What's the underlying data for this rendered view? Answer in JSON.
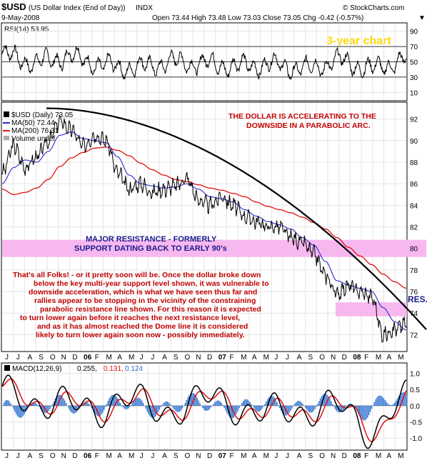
{
  "header": {
    "symbol": "$USD",
    "name": "(US Dollar Index (End of Day))",
    "exchange": "INDX",
    "date": "9-May-2008",
    "quote": "Open 73.44  High 73.48  Low 73.03  Close 73.05  Chg -0.42 (-0.57%)",
    "quote_arrow": "▼",
    "watermark": "© StockCharts.com",
    "three_year_label": "3-year chart"
  },
  "rsi": {
    "label": "RSI(14) 53.95",
    "ticks": [
      "90",
      "70",
      "50",
      "30",
      "10"
    ]
  },
  "price": {
    "legend": {
      "main": "$USD (Daily) 73.05",
      "ma50": "MA(50) 72.44",
      "ma200": "MA(200) 76.31",
      "volume": "Volume undef"
    },
    "ticks": [
      "92",
      "90",
      "88",
      "86",
      "84",
      "82",
      "80",
      "78",
      "76",
      "74",
      "72"
    ],
    "annotation_top": [
      "THE DOLLAR IS ACCELERATING TO THE",
      "DOWNSIDE IN A PARABOLIC ARC."
    ],
    "resistance_band": [
      "MAJOR RESISTANCE - FORMERLY",
      "SUPPORT DATING BACK TO EARLY 90's"
    ],
    "res_label": "RES.",
    "commentary": [
      "That's all Folks! - or it pretty soon will be. Once the dollar broke down",
      "below the key multi-year support level shown, it was vulnerable to",
      "downside acceleration, which is what we have seen thus far and",
      "rallies appear to be stopping in the vicinity of the constraining",
      "parabolic resistance line shown. For this reason it is expected",
      "to turn lower again before it reaches the next resistance level,",
      "and as it has almost reached the Dome line it is considered",
      "likely to turn lower again soon now - possibly immediately."
    ],
    "colors": {
      "band": "#f7b8f0",
      "ma50": "#2a2ad0",
      "ma200": "#e01010",
      "dome": "#000000",
      "annotation": "#c00000"
    }
  },
  "months": [
    "J",
    "J",
    "A",
    "S",
    "O",
    "N",
    "D",
    "06",
    "F",
    "M",
    "A",
    "M",
    "J",
    "J",
    "A",
    "S",
    "O",
    "N",
    "D",
    "07",
    "F",
    "M",
    "A",
    "M",
    "J",
    "J",
    "A",
    "S",
    "O",
    "N",
    "D",
    "08",
    "F",
    "M",
    "A",
    "M"
  ],
  "macd": {
    "label": "MACD(12,26,9)",
    "v1": "0.255,",
    "v2": "0.131,",
    "v3": "0.124",
    "ticks": [
      "1.0",
      "0.5",
      "0.0",
      "-0.5",
      "-1.0"
    ],
    "colors": {
      "macd": "#000000",
      "signal": "#e01010",
      "hist": "#2a6fd0"
    }
  },
  "chart_data": [
    {
      "type": "line",
      "title": "RSI(14) 53.95",
      "ylim": [
        0,
        100
      ],
      "reference_lines": [
        30,
        50,
        70
      ],
      "x": [
        "2005-06",
        "2005-09",
        "2005-12",
        "2006-03",
        "2006-06",
        "2006-09",
        "2006-12",
        "2007-03",
        "2007-06",
        "2007-09",
        "2007-12",
        "2008-03",
        "2008-05"
      ],
      "series": [
        {
          "name": "RSI(14)",
          "values": [
            60,
            48,
            58,
            45,
            42,
            50,
            48,
            44,
            47,
            40,
            52,
            40,
            54
          ]
        }
      ]
    },
    {
      "type": "line",
      "title": "$USD (Daily) 73.05",
      "ylim": [
        70.5,
        93.5
      ],
      "x": [
        "2005-06",
        "2005-07",
        "2005-08",
        "2005-09",
        "2005-10",
        "2005-11",
        "2005-12",
        "2006-01",
        "2006-02",
        "2006-03",
        "2006-04",
        "2006-05",
        "2006-06",
        "2006-07",
        "2006-08",
        "2006-09",
        "2006-10",
        "2006-11",
        "2006-12",
        "2007-01",
        "2007-02",
        "2007-03",
        "2007-04",
        "2007-05",
        "2007-06",
        "2007-07",
        "2007-08",
        "2007-09",
        "2007-10",
        "2007-11",
        "2007-12",
        "2008-01",
        "2008-02",
        "2008-03",
        "2008-04",
        "2008-05"
      ],
      "series": [
        {
          "name": "$USD (Daily)",
          "values": [
            87.0,
            89.5,
            87.5,
            88.5,
            90.0,
            91.8,
            91.0,
            89.5,
            90.5,
            90.0,
            87.0,
            85.5,
            86.0,
            85.2,
            85.5,
            85.8,
            86.5,
            84.5,
            84.0,
            84.8,
            84.0,
            83.0,
            82.5,
            82.0,
            82.0,
            81.0,
            80.5,
            79.5,
            77.5,
            75.8,
            76.5,
            76.0,
            75.5,
            72.0,
            72.5,
            73.05
          ]
        },
        {
          "name": "MA(50)",
          "values": [
            86.0,
            87.5,
            88.2,
            88.0,
            89.0,
            90.5,
            90.8,
            90.2,
            90.0,
            89.8,
            88.5,
            86.8,
            86.0,
            85.8,
            85.6,
            85.7,
            86.0,
            85.5,
            84.8,
            84.6,
            84.3,
            83.6,
            83.0,
            82.5,
            82.2,
            81.8,
            81.0,
            80.3,
            78.8,
            77.0,
            76.6,
            76.3,
            76.0,
            74.5,
            73.2,
            72.44
          ]
        },
        {
          "name": "MA(200)",
          "values": [
            85.5,
            85.0,
            85.2,
            85.6,
            86.4,
            87.6,
            88.4,
            88.9,
            89.3,
            89.4,
            89.1,
            88.6,
            87.9,
            87.3,
            86.8,
            86.4,
            86.2,
            85.9,
            85.6,
            85.4,
            85.1,
            84.8,
            84.3,
            83.9,
            83.6,
            83.3,
            82.9,
            82.4,
            81.8,
            81.0,
            80.1,
            79.3,
            78.5,
            77.6,
            76.9,
            76.31
          ]
        }
      ]
    },
    {
      "type": "line",
      "title": "MACD(12,26,9) 0.255, 0.131, 0.124",
      "ylim": [
        -1.35,
        1.3
      ],
      "x": [
        "2005-06",
        "2005-09",
        "2005-12",
        "2006-03",
        "2006-06",
        "2006-09",
        "2006-12",
        "2007-03",
        "2007-06",
        "2007-09",
        "2007-12",
        "2008-03",
        "2008-05"
      ],
      "series": [
        {
          "name": "MACD",
          "values": [
            0.6,
            -0.3,
            0.5,
            -0.4,
            0.3,
            -0.2,
            0.3,
            -0.3,
            0.2,
            -0.6,
            0.3,
            -0.9,
            0.255
          ]
        },
        {
          "name": "Signal",
          "values": [
            0.5,
            -0.2,
            0.4,
            -0.3,
            0.2,
            -0.1,
            0.2,
            -0.2,
            0.1,
            -0.5,
            0.2,
            -0.7,
            0.131
          ]
        },
        {
          "name": "Histogram",
          "values": [
            0.1,
            -0.1,
            0.1,
            -0.1,
            0.1,
            -0.1,
            0.1,
            -0.1,
            0.1,
            -0.1,
            0.1,
            -0.2,
            0.124
          ]
        }
      ]
    }
  ]
}
